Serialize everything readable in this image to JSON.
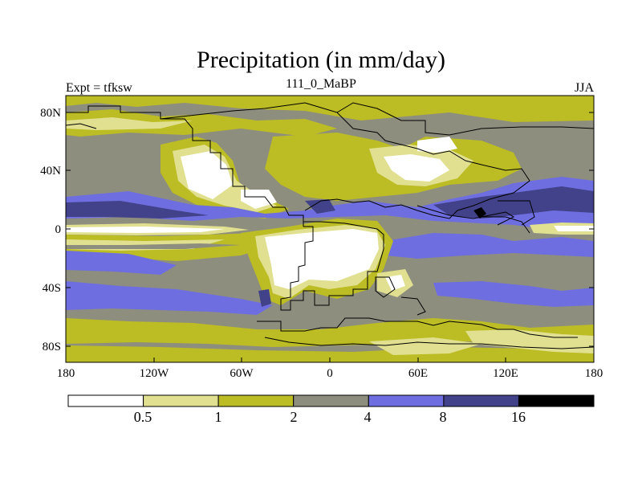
{
  "title": "Precipitation (in mm/day)",
  "left_label": "Expt = tfksw",
  "center_label": "111_0_MaBP",
  "right_label": "JJA",
  "x_ticks": [
    "180",
    "120W",
    "60W",
    "0",
    "60E",
    "120E",
    "180"
  ],
  "y_ticks": [
    "80N",
    "40N",
    "0",
    "40S",
    "80S"
  ],
  "colorbar": {
    "labels": [
      "0.5",
      "1",
      "2",
      "4",
      "8",
      "16"
    ],
    "colors": [
      "#ffffff",
      "#e0e090",
      "#bcbc24",
      "#8e8e7e",
      "#6e6ee0",
      "#42428a",
      "#000000"
    ]
  }
}
